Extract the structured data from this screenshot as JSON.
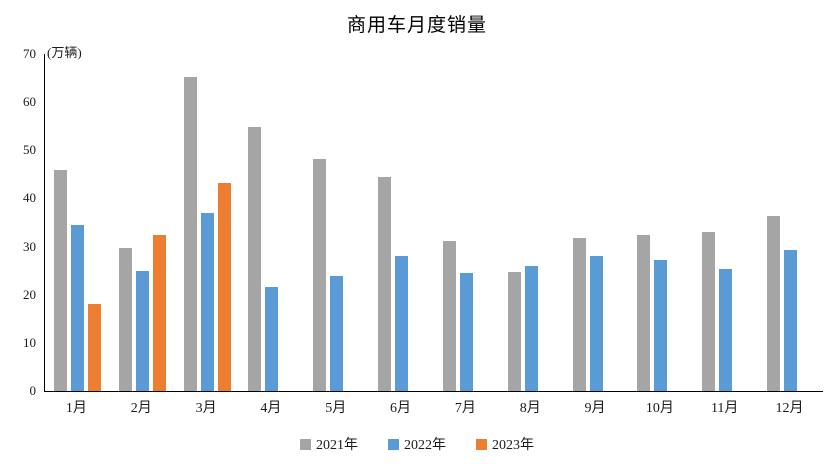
{
  "title": "商用车月度销量",
  "unit_label": "(万辆)",
  "colors": {
    "series_2021": "#A5A5A5",
    "series_2022": "#5B9BD5",
    "series_2023": "#ED7D31",
    "axis": "#000000",
    "background": "#FFFFFF"
  },
  "chart_data": {
    "type": "bar",
    "title": "商用车月度销量",
    "ylabel": "(万辆)",
    "xlabel": "",
    "categories": [
      "1月",
      "2月",
      "3月",
      "4月",
      "5月",
      "6月",
      "7月",
      "8月",
      "9月",
      "10月",
      "11月",
      "12月"
    ],
    "series": [
      {
        "name": "2021年",
        "color": "#A5A5A5",
        "values": [
          45.9,
          29.7,
          65.2,
          54.8,
          48.1,
          44.5,
          31.2,
          24.8,
          31.7,
          32.4,
          33.0,
          36.3
        ]
      },
      {
        "name": "2022年",
        "color": "#5B9BD5",
        "values": [
          34.5,
          25.0,
          36.9,
          21.6,
          23.9,
          28.1,
          24.5,
          25.9,
          28.0,
          27.3,
          25.4,
          29.2
        ]
      },
      {
        "name": "2023年",
        "color": "#ED7D31",
        "values": [
          18.0,
          32.4,
          43.2,
          null,
          null,
          null,
          null,
          null,
          null,
          null,
          null,
          null
        ]
      }
    ],
    "ylim": [
      0,
      70
    ],
    "yticks": [
      0,
      10,
      20,
      30,
      40,
      50,
      60,
      70
    ],
    "grid": false,
    "legend_position": "bottom"
  }
}
